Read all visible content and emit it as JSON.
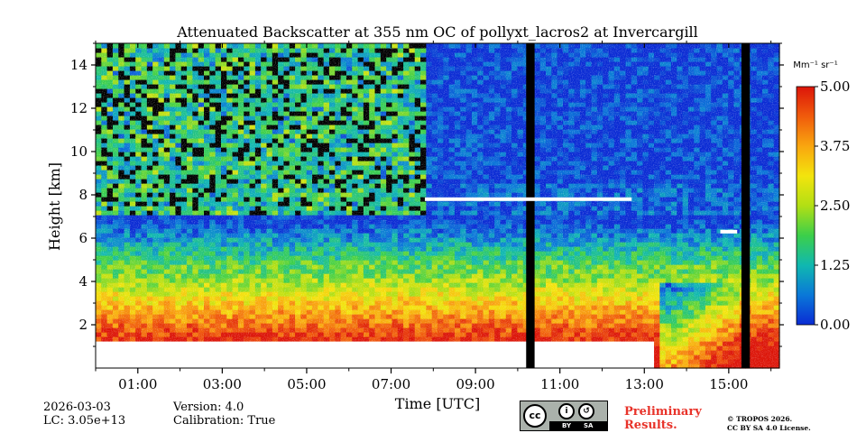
{
  "chart_data": {
    "type": "heatmap",
    "title": "Attenuated Backscatter at 355 nm OC of pollyxt_lacros2 at Invercargill",
    "xlabel": "Time [UTC]",
    "ylabel": "Height [km]",
    "xlim": [
      0.0,
      16.2
    ],
    "ylim": [
      0.0,
      15.0
    ],
    "x_ticks": [
      {
        "v": 1,
        "label": "01:00"
      },
      {
        "v": 3,
        "label": "03:00"
      },
      {
        "v": 5,
        "label": "05:00"
      },
      {
        "v": 7,
        "label": "07:00"
      },
      {
        "v": 9,
        "label": "09:00"
      },
      {
        "v": 11,
        "label": "11:00"
      },
      {
        "v": 13,
        "label": "13:00"
      },
      {
        "v": 15,
        "label": "15:00"
      }
    ],
    "x_minor_ticks": [
      0,
      2,
      4,
      6,
      8,
      10,
      12,
      14,
      16
    ],
    "y_ticks": [
      2,
      4,
      6,
      8,
      10,
      12,
      14
    ],
    "colorbar": {
      "label": "Mm⁻¹ sr⁻¹",
      "range": [
        0.0,
        5.0
      ],
      "ticks": [
        "0.00",
        "1.25",
        "2.50",
        "3.75",
        "5.00"
      ],
      "tick_values": [
        0.0,
        1.25,
        2.5,
        3.75,
        5.0
      ],
      "colormap": [
        "#0a2bd4",
        "#0a78d8",
        "#10b8b0",
        "#3ccf4a",
        "#b2df14",
        "#f3e40d",
        "#f9a60f",
        "#f05b0c",
        "#dc1509"
      ]
    },
    "missing_data_intervals_hours": [
      [
        10.2,
        10.4
      ],
      [
        15.3,
        15.5
      ]
    ],
    "cloud_layers": [
      {
        "time_start": 7.8,
        "time_end": 12.7,
        "height_km": 7.8
      },
      {
        "time_start": 14.8,
        "time_end": 15.2,
        "height_km": 6.3
      }
    ],
    "description_values": {
      "near_surface_max": 5.0,
      "boundary_layer_top_km": 4.5,
      "clear_sky_upper_level": 0.0
    }
  },
  "footer": {
    "date": "2026-03-03",
    "lc": "LC: 3.05e+13",
    "version": "Version: 4.0",
    "calibration": "Calibration: True",
    "preliminary_line1": "Preliminary",
    "preliminary_line2": "Results.",
    "copyright_line1": "© TROPOS 2026.",
    "copyright_line2": "CC BY SA 4.0 License.",
    "license_badge": {
      "by": "BY",
      "sa": "SA"
    }
  }
}
